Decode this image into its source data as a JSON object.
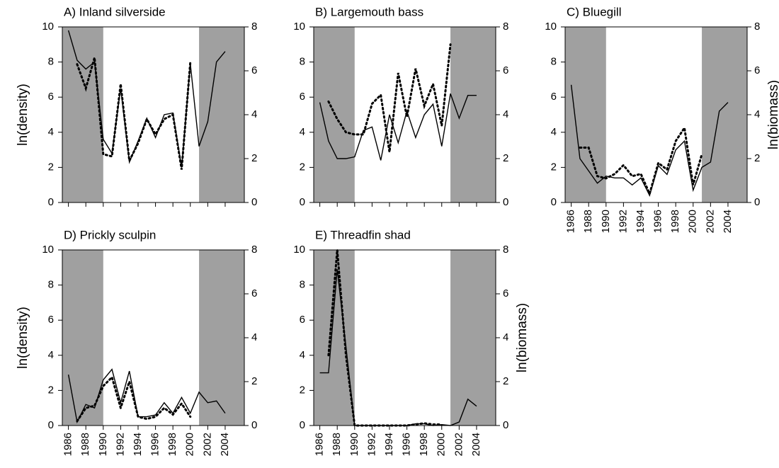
{
  "chart_data": [
    {
      "type": "line",
      "title": "A) Inland silverside",
      "ylabel": "ln(density)",
      "x": [
        1986,
        1987,
        1988,
        1989,
        1990,
        1991,
        1992,
        1993,
        1994,
        1995,
        1996,
        1997,
        1998,
        1999,
        2000,
        2001,
        2002,
        2003,
        2004
      ],
      "series": [
        {
          "color": "#000000",
          "style": "solid",
          "values": [
            9.8,
            8.1,
            7.6,
            8.0,
            3.6,
            2.8,
            6.5,
            2.3,
            3.5,
            4.8,
            3.7,
            5.0,
            5.1,
            2.0,
            7.9,
            3.2,
            4.6,
            8.0,
            8.6
          ]
        },
        {
          "color": "#000000",
          "style": "dotted",
          "axis": "y2",
          "values": [
            null,
            6.3,
            5.2,
            6.6,
            2.2,
            2.1,
            5.4,
            1.9,
            2.7,
            3.8,
            3.1,
            3.8,
            4.0,
            1.5,
            6.4,
            null,
            null,
            null,
            null
          ]
        }
      ],
      "xlim": [
        1985.3,
        2006.2
      ],
      "xticks": [
        1986,
        1988,
        1990,
        1992,
        1994,
        1996,
        1998,
        2000,
        2002,
        2004
      ],
      "xtick_labels": false,
      "ylim": [
        0,
        10
      ],
      "yticks": [
        0,
        2,
        4,
        6,
        8,
        10
      ],
      "y2lim": [
        0,
        8
      ],
      "y2ticks": [
        0,
        2,
        4,
        6,
        8
      ],
      "shaded": [
        [
          1985.3,
          1990
        ],
        [
          2001,
          2006.2
        ]
      ],
      "shade_color": "#a0a0a0"
    },
    {
      "type": "line",
      "title": "B) Largemouth bass",
      "x": [
        1986,
        1987,
        1988,
        1989,
        1990,
        1991,
        1992,
        1993,
        1994,
        1995,
        1996,
        1997,
        1998,
        1999,
        2000,
        2001,
        2002,
        2003,
        2004
      ],
      "series": [
        {
          "color": "#000000",
          "style": "solid",
          "values": [
            5.7,
            3.5,
            2.5,
            2.5,
            2.6,
            4.1,
            4.3,
            2.4,
            5.0,
            3.4,
            5.2,
            3.7,
            5.0,
            5.6,
            3.2,
            6.2,
            4.8,
            6.1,
            6.1
          ]
        },
        {
          "color": "#000000",
          "style": "dotted",
          "axis": "y2",
          "values": [
            null,
            4.6,
            3.8,
            3.2,
            3.1,
            3.1,
            4.5,
            4.9,
            2.3,
            5.9,
            3.9,
            6.1,
            4.4,
            5.4,
            3.5,
            7.2,
            null,
            null,
            null
          ]
        }
      ],
      "xlim": [
        1985.3,
        2006.2
      ],
      "xticks": [
        1986,
        1988,
        1990,
        1992,
        1994,
        1996,
        1998,
        2000,
        2002,
        2004
      ],
      "xtick_labels": false,
      "ylim": [
        0,
        10
      ],
      "yticks": [
        0,
        2,
        4,
        6,
        8,
        10
      ],
      "y2lim": [
        0,
        8
      ],
      "y2ticks": [
        0,
        2,
        4,
        6,
        8
      ],
      "shaded": [
        [
          1985.3,
          1990
        ],
        [
          2001,
          2006.2
        ]
      ],
      "shade_color": "#a0a0a0"
    },
    {
      "type": "line",
      "title": "C) Bluegill",
      "y2label": "ln(biomass)",
      "x": [
        1986,
        1987,
        1988,
        1989,
        1990,
        1991,
        1992,
        1993,
        1994,
        1995,
        1996,
        1997,
        1998,
        1999,
        2000,
        2001,
        2002,
        2003,
        2004
      ],
      "series": [
        {
          "color": "#000000",
          "style": "solid",
          "values": [
            6.7,
            2.5,
            1.8,
            1.1,
            1.5,
            1.4,
            1.4,
            1.0,
            1.4,
            0.4,
            2.1,
            1.6,
            3.0,
            3.5,
            0.7,
            2.0,
            2.3,
            5.2,
            5.7
          ]
        },
        {
          "color": "#000000",
          "style": "dotted",
          "axis": "y2",
          "values": [
            null,
            2.5,
            2.5,
            1.2,
            1.1,
            1.3,
            1.7,
            1.2,
            1.3,
            0.4,
            1.8,
            1.5,
            2.8,
            3.4,
            0.8,
            2.2,
            null,
            null,
            null
          ]
        }
      ],
      "xlim": [
        1985.3,
        2006.2
      ],
      "xticks": [
        1986,
        1988,
        1990,
        1992,
        1994,
        1996,
        1998,
        2000,
        2002,
        2004
      ],
      "xtick_labels": true,
      "ylim": [
        0,
        10
      ],
      "yticks": [
        0,
        2,
        4,
        6,
        8,
        10
      ],
      "y2lim": [
        0,
        8
      ],
      "y2ticks": [
        0,
        2,
        4,
        6,
        8
      ],
      "shaded": [
        [
          1985.3,
          1990
        ],
        [
          2001,
          2006.2
        ]
      ],
      "shade_color": "#a0a0a0"
    },
    {
      "type": "line",
      "title": "D) Prickly sculpin",
      "ylabel": "ln(density)",
      "x": [
        1986,
        1987,
        1988,
        1989,
        1990,
        1991,
        1992,
        1993,
        1994,
        1995,
        1996,
        1997,
        1998,
        1999,
        2000,
        2001,
        2002,
        2003,
        2004
      ],
      "series": [
        {
          "color": "#000000",
          "style": "solid",
          "values": [
            2.9,
            0.2,
            1.2,
            1.0,
            2.6,
            3.2,
            1.3,
            3.1,
            0.5,
            0.5,
            0.6,
            1.3,
            0.7,
            1.6,
            0.7,
            1.9,
            1.3,
            1.4,
            0.7
          ]
        },
        {
          "color": "#000000",
          "style": "dotted",
          "axis": "y2",
          "values": [
            null,
            0.2,
            0.8,
            0.9,
            1.8,
            2.2,
            0.8,
            2.0,
            0.4,
            0.3,
            0.4,
            0.8,
            0.5,
            1.0,
            0.4,
            null,
            null,
            null,
            null
          ]
        }
      ],
      "xlim": [
        1985.3,
        2006.2
      ],
      "xticks": [
        1986,
        1988,
        1990,
        1992,
        1994,
        1996,
        1998,
        2000,
        2002,
        2004
      ],
      "xtick_labels": true,
      "ylim": [
        0,
        10
      ],
      "yticks": [
        0,
        2,
        4,
        6,
        8,
        10
      ],
      "y2lim": [
        0,
        8
      ],
      "y2ticks": [
        0,
        2,
        4,
        6,
        8
      ],
      "shaded": [
        [
          1985.3,
          1990
        ],
        [
          2001,
          2006.2
        ]
      ],
      "shade_color": "#a0a0a0"
    },
    {
      "type": "line",
      "title": "E) Threadfin shad",
      "y2label": "ln(biomass)",
      "x": [
        1986,
        1987,
        1988,
        1989,
        1990,
        1991,
        1992,
        1993,
        1994,
        1995,
        1996,
        1997,
        1998,
        1999,
        2000,
        2001,
        2002,
        2003,
        2004
      ],
      "series": [
        {
          "color": "#000000",
          "style": "solid",
          "values": [
            3.0,
            3.0,
            8.9,
            4.5,
            0,
            0,
            0,
            0,
            0,
            0,
            0,
            0.1,
            0.1,
            0,
            0.05,
            0,
            0.2,
            1.5,
            1.1
          ]
        },
        {
          "color": "#000000",
          "style": "dotted",
          "axis": "y2",
          "values": [
            null,
            3.2,
            8.0,
            3.2,
            0,
            0,
            0,
            0,
            0,
            0,
            0,
            0.05,
            0.1,
            0.05,
            0.05,
            null,
            null,
            null,
            null
          ]
        }
      ],
      "xlim": [
        1985.3,
        2006.2
      ],
      "xticks": [
        1986,
        1988,
        1990,
        1992,
        1994,
        1996,
        1998,
        2000,
        2002,
        2004
      ],
      "xtick_labels": true,
      "ylim": [
        0,
        10
      ],
      "yticks": [
        0,
        2,
        4,
        6,
        8,
        10
      ],
      "y2lim": [
        0,
        8
      ],
      "y2ticks": [
        0,
        2,
        4,
        6,
        8
      ],
      "shaded": [
        [
          1985.3,
          1990
        ],
        [
          2001,
          2006.2
        ]
      ],
      "shade_color": "#a0a0a0"
    }
  ]
}
